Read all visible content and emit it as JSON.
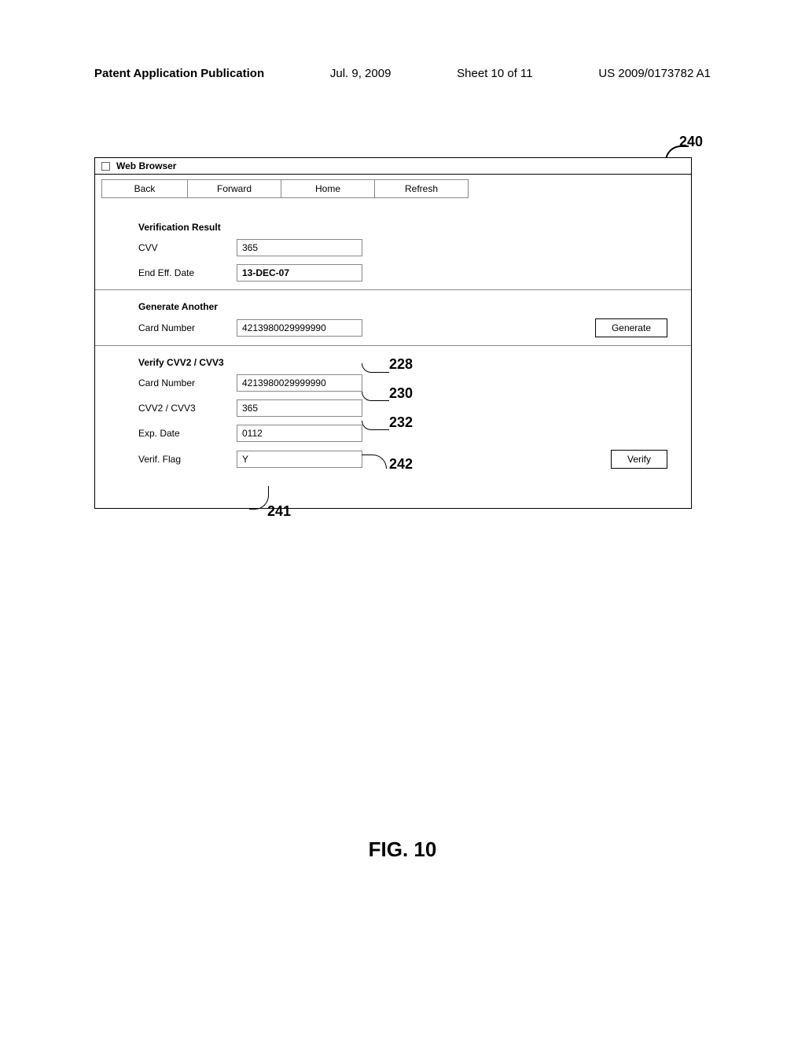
{
  "header": {
    "publication_type": "Patent Application Publication",
    "date": "Jul. 9, 2009",
    "sheet": "Sheet 10 of 11",
    "pub_number": "US 2009/0173782 A1"
  },
  "browser": {
    "title": "Web Browser",
    "toolbar": {
      "back": "Back",
      "forward": "Forward",
      "home": "Home",
      "refresh": "Refresh"
    }
  },
  "sections": {
    "verification_result": {
      "title": "Verification Result",
      "cvv_label": "CVV",
      "cvv_value": "365",
      "end_eff_date_label": "End Eff. Date",
      "end_eff_date_value": "13-DEC-07"
    },
    "generate_another": {
      "title": "Generate Another",
      "card_number_label": "Card Number",
      "card_number_value": "4213980029999990",
      "generate_button": "Generate"
    },
    "verify_cvv": {
      "title": "Verify CVV2 / CVV3",
      "card_number_label": "Card Number",
      "card_number_value": "4213980029999990",
      "cvv_label": "CVV2 / CVV3",
      "cvv_value": "365",
      "exp_date_label": "Exp. Date",
      "exp_date_value": "0112",
      "verif_flag_label": "Verif. Flag",
      "verif_flag_value": "Y",
      "verify_button": "Verify"
    }
  },
  "refs": {
    "r240": "240",
    "r228": "228",
    "r230": "230",
    "r232": "232",
    "r242": "242",
    "r241": "241"
  },
  "figure_caption": "FIG. 10"
}
